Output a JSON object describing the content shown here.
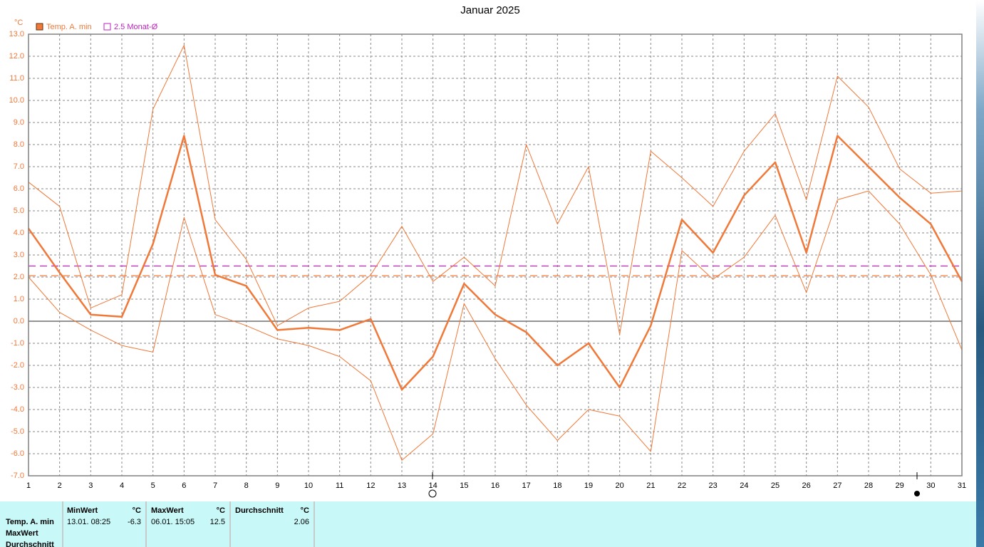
{
  "chart_data": {
    "type": "line",
    "title": "Januar 2025",
    "y_unit": "°C",
    "x": [
      1,
      2,
      3,
      4,
      5,
      6,
      7,
      8,
      9,
      10,
      11,
      12,
      13,
      14,
      15,
      16,
      17,
      18,
      19,
      20,
      21,
      22,
      23,
      24,
      25,
      26,
      27,
      28,
      29,
      30,
      31
    ],
    "xlim": [
      1,
      31
    ],
    "series": [
      {
        "name": "Temp. A. min",
        "color": "#f07838",
        "width": 2.5,
        "values": [
          4.2,
          2.2,
          0.3,
          0.2,
          3.5,
          8.4,
          2.1,
          1.6,
          -0.4,
          -0.3,
          -0.4,
          0.1,
          -3.1,
          -1.6,
          1.7,
          0.3,
          -0.5,
          -2.0,
          -1.0,
          -3.0,
          -0.2,
          4.6,
          3.1,
          5.7,
          7.2,
          3.1,
          8.4,
          7.0,
          5.6,
          4.4,
          1.8
        ]
      },
      {
        "color": "#f07838",
        "width": 1,
        "values": [
          6.3,
          5.2,
          0.6,
          1.2,
          9.6,
          12.5,
          4.6,
          2.8,
          -0.2,
          0.6,
          0.9,
          2.1,
          4.3,
          1.8,
          2.9,
          1.6,
          8.0,
          4.4,
          7.0,
          -0.6,
          7.7,
          6.5,
          5.2,
          7.7,
          9.4,
          5.5,
          11.1,
          9.7,
          6.9,
          5.8,
          5.9
        ]
      },
      {
        "color": "#f07838",
        "width": 1,
        "values": [
          2.0,
          0.4,
          -0.4,
          -1.1,
          -1.4,
          4.7,
          0.3,
          -0.2,
          -0.8,
          -1.1,
          -1.6,
          -2.7,
          -6.3,
          -5.1,
          0.8,
          -1.7,
          -3.8,
          -5.4,
          -4.0,
          -4.3,
          -5.9,
          3.2,
          1.9,
          2.9,
          4.8,
          1.3,
          5.5,
          5.9,
          4.4,
          2.1,
          -1.3
        ]
      }
    ],
    "reference_lines": [
      {
        "value": 2.5,
        "label": "2.5 Monat-Ø",
        "color": "#c020c0"
      },
      {
        "value": 2.06,
        "color": "#f07838"
      }
    ],
    "ylim": [
      -7,
      13
    ],
    "yticks": [
      {
        "value": -7,
        "label": "-7.0"
      },
      {
        "value": -6,
        "label": "-6.0"
      },
      {
        "value": -5,
        "label": "-5.0"
      },
      {
        "value": -4,
        "label": "-4.0"
      },
      {
        "value": -3,
        "label": "-3.0"
      },
      {
        "value": -2,
        "label": "-2.0"
      },
      {
        "value": -1,
        "label": "-1.0"
      },
      {
        "value": 0,
        "label": "0.0"
      },
      {
        "value": 1,
        "label": "1.0"
      },
      {
        "value": 2,
        "label": "2.0"
      },
      {
        "value": 3,
        "label": "3.0"
      },
      {
        "value": 4,
        "label": "4.0"
      },
      {
        "value": 5,
        "label": "5.0"
      },
      {
        "value": 6,
        "label": "6.0"
      },
      {
        "value": 7,
        "label": "7.0"
      },
      {
        "value": 8,
        "label": "8.0"
      },
      {
        "value": 9,
        "label": "9.0"
      },
      {
        "value": 10,
        "label": "10.0"
      },
      {
        "value": 11,
        "label": "11.0"
      },
      {
        "value": 12,
        "label": "12.0"
      },
      {
        "value": 13,
        "label": "13.0"
      }
    ],
    "grid": true
  },
  "stats": {
    "row_labels": [
      "Temp. A. min",
      "MaxWert",
      "Durchschnitt"
    ],
    "columns": [
      {
        "header": "MinWert",
        "unit": "°C",
        "when": "13.01.  08:25",
        "value": "-6.3"
      },
      {
        "header": "MaxWert",
        "unit": "°C",
        "when": "06.01.  15:05",
        "value": "12.5"
      },
      {
        "header": "Durchschnitt",
        "unit": "°C",
        "value": "2.06"
      }
    ]
  }
}
